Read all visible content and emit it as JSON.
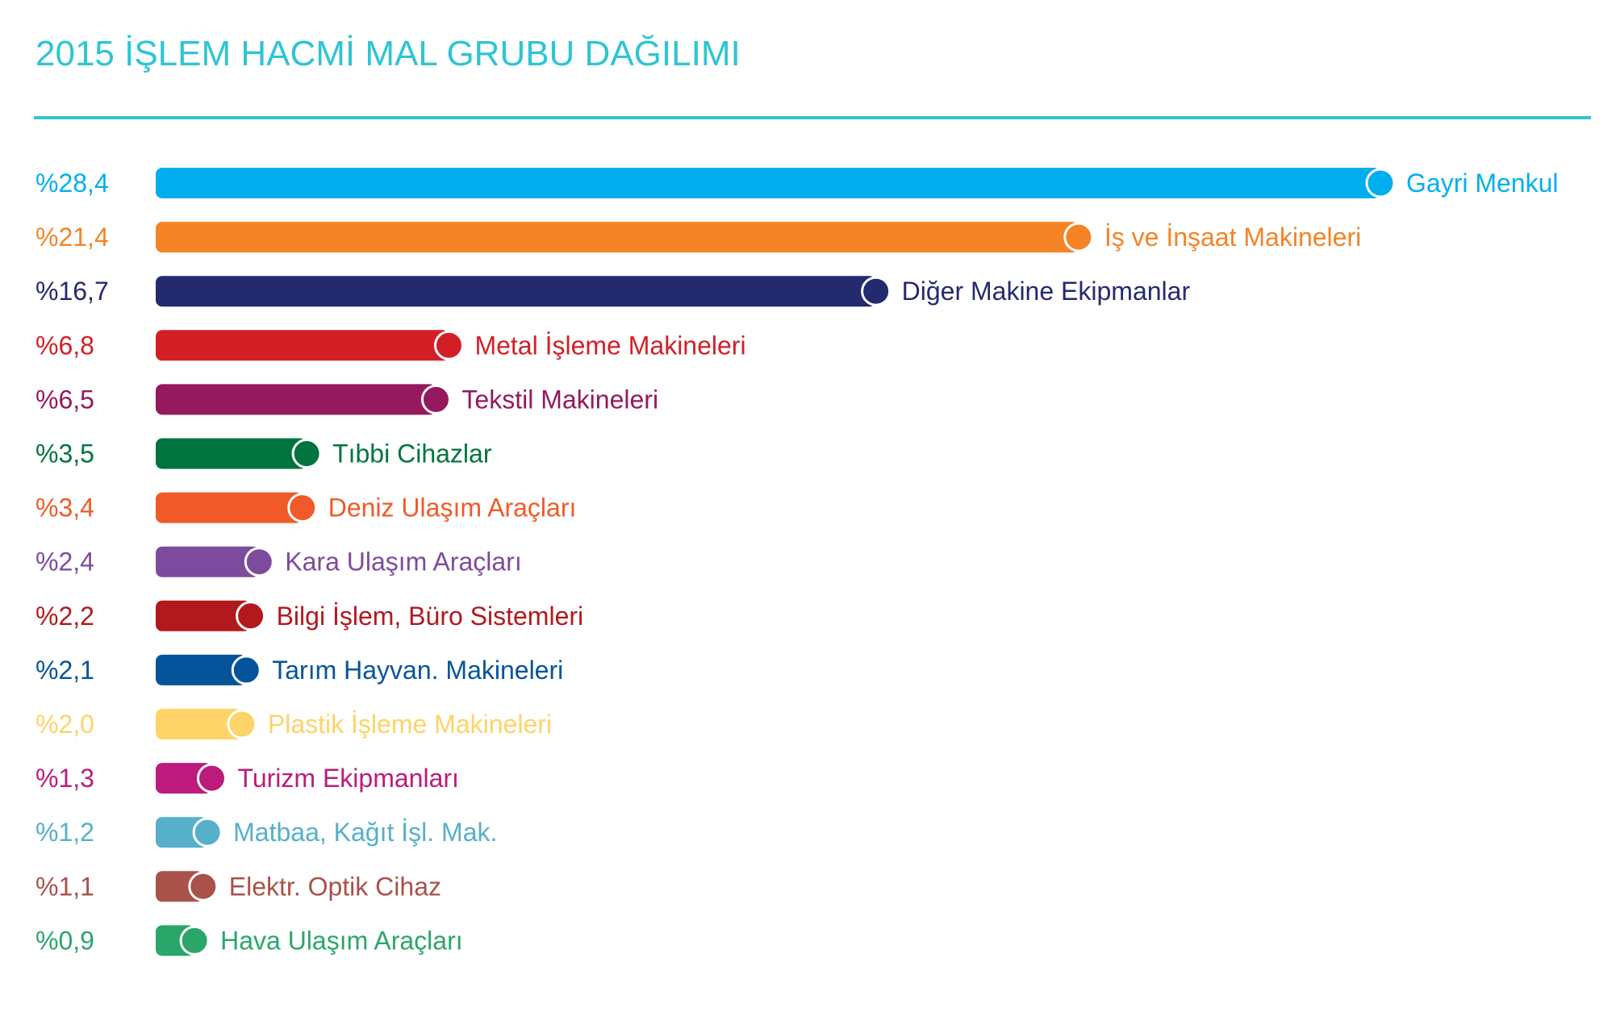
{
  "title": "2015 İŞLEM HACMİ MAL GRUBU DAĞILIMI",
  "colors": {
    "title": "#2ec5d3",
    "rule": "#2ec5d3"
  },
  "chart_data": {
    "type": "bar",
    "orientation": "horizontal",
    "title": "2015 İŞLEM HACMİ MAL GRUBU DAĞILIMI",
    "xlabel": "",
    "ylabel": "",
    "xlim": [
      0,
      28.4
    ],
    "grid": false,
    "legend": "none",
    "categories": [
      "Gayri Menkul",
      "İş ve İnşaat Makineleri",
      "Diğer Makine Ekipmanlar",
      "Metal İşleme Makineleri",
      "Tekstil Makineleri",
      "Tıbbi Cihazlar",
      "Deniz Ulaşım Araçları",
      "Kara Ulaşım Araçları",
      "Bilgi İşlem, Büro Sistemleri",
      "Tarım Hayvan. Makineleri",
      "Plastik İşleme Makineleri",
      "Turizm Ekipmanları",
      "Matbaa, Kağıt İşl. Mak.",
      "Elektr. Optik Cihaz",
      "Hava Ulaşım Araçları"
    ],
    "values": [
      28.4,
      21.4,
      16.7,
      6.8,
      6.5,
      3.5,
      3.4,
      2.4,
      2.2,
      2.1,
      2.0,
      1.3,
      1.2,
      1.1,
      0.9
    ],
    "value_labels": [
      "%28,4",
      "%21,4",
      "%16,7",
      "%6,8",
      "%6,5",
      "%3,5",
      "%3,4",
      "%2,4",
      "%2,2",
      "%2,1",
      "%2,0",
      "%1,3",
      "%1,2",
      "%1,1",
      "%0,9"
    ],
    "colors": [
      "#00aeef",
      "#f58426",
      "#232a6e",
      "#d21f26",
      "#96185e",
      "#00743f",
      "#f05a28",
      "#7d4b9e",
      "#b2191c",
      "#05549b",
      "#fed367",
      "#bc1b7d",
      "#56b0c9",
      "#a8524a",
      "#2aa66b"
    ]
  }
}
